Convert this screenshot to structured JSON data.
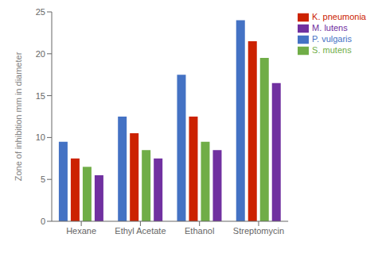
{
  "chart_data": {
    "type": "bar",
    "categories": [
      "Hexane",
      "Ethyl Acetate",
      "Ethanol",
      "Streptomycin"
    ],
    "series": [
      {
        "name": "P. vulgaris",
        "color": "#4472C4",
        "values": [
          9.5,
          12.5,
          17.5,
          24.0
        ]
      },
      {
        "name": "K. pneumonia",
        "color": "#CC2200",
        "values": [
          7.5,
          10.5,
          12.5,
          21.5
        ]
      },
      {
        "name": "S. mutens",
        "color": "#70AD47",
        "values": [
          6.5,
          8.5,
          9.5,
          19.5
        ]
      },
      {
        "name": "M. lutens",
        "color": "#7030A0",
        "values": [
          5.5,
          7.5,
          8.5,
          16.5
        ]
      }
    ],
    "ylabel": "Zone of inhibition mm in diameter",
    "ylim": [
      0,
      25
    ],
    "yticks": [
      0,
      5,
      10,
      15,
      20,
      25
    ],
    "grid": false,
    "legend": "right"
  }
}
